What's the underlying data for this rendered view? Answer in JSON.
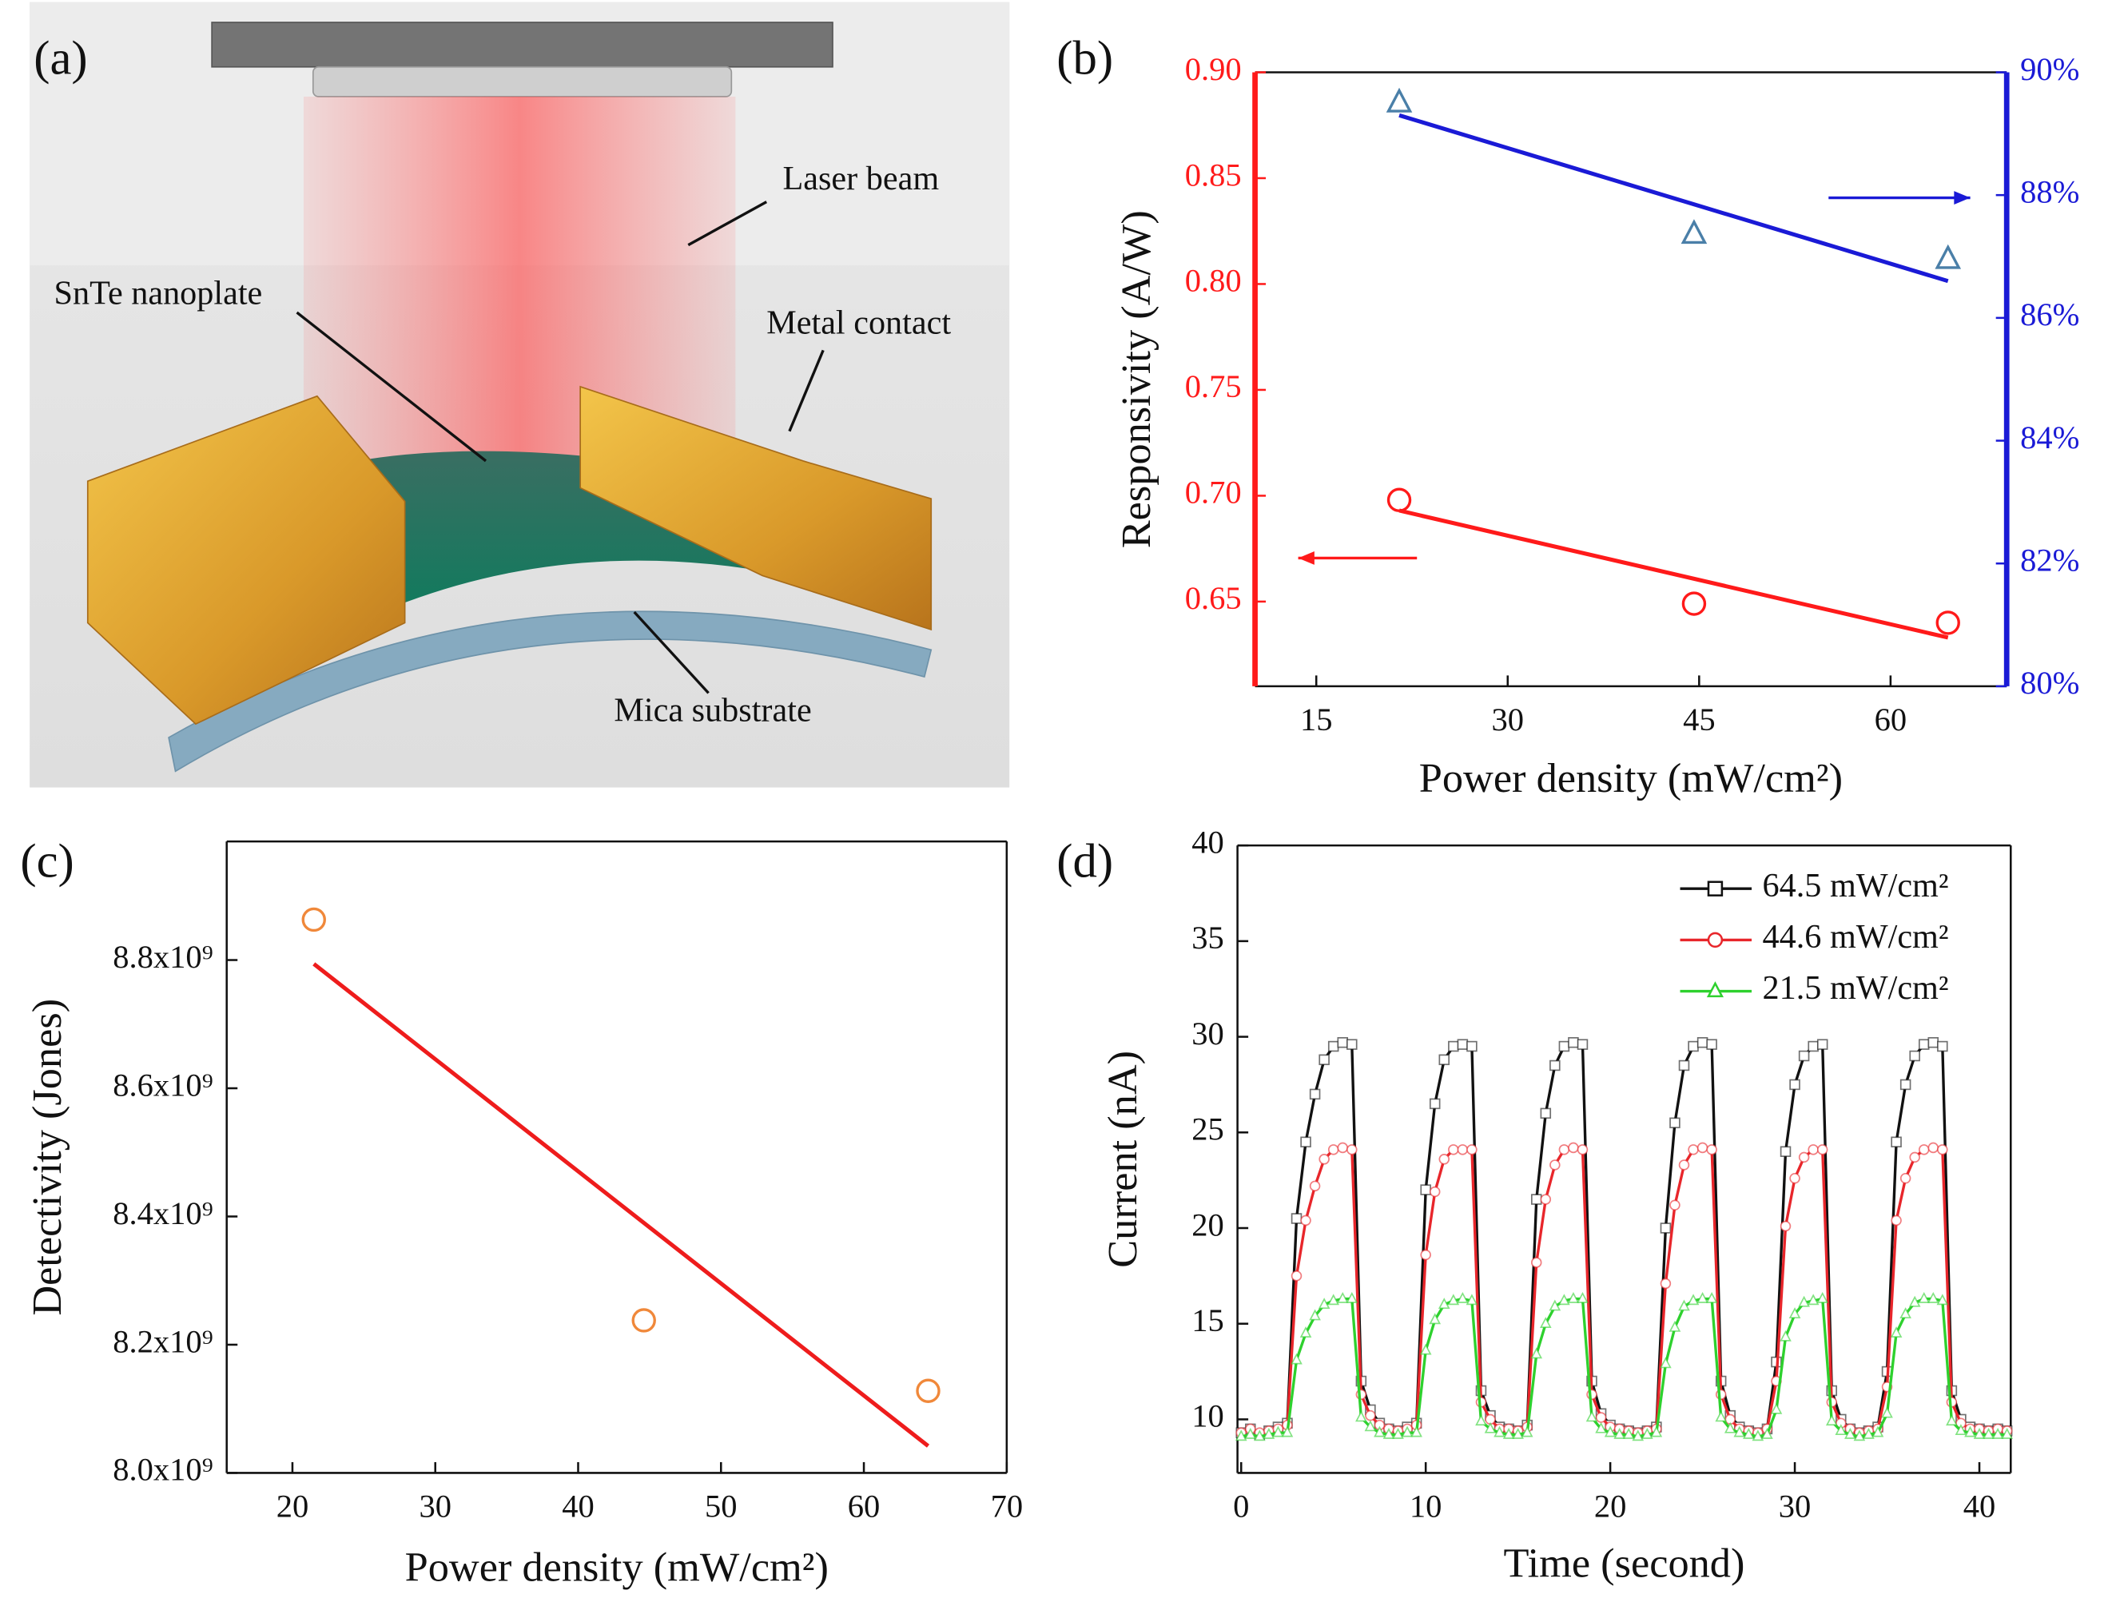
{
  "diagram_a": {
    "panel_label": "(a)",
    "labels": [
      "Laser beam",
      "SnTe nanoplate",
      "Metal contact",
      "Mica substrate"
    ]
  },
  "chart_data": [
    {
      "type": "scatter",
      "panel_label": "(b)",
      "xlabel": "Power density (mW/cm²)",
      "ylabel": "Responsivity (A/W)",
      "xlim": [
        10.2,
        69.1
      ],
      "xticks": [
        15,
        30,
        45,
        60
      ],
      "ylim": [
        0.61,
        0.9
      ],
      "yticks": [
        0.65,
        {
          "value": 0.7,
          "label": "0.70"
        },
        0.75,
        {
          "value": 0.8,
          "label": "0.80"
        },
        0.85,
        {
          "value": 0.9,
          "label": "0.90"
        }
      ],
      "y2lim": [
        80,
        90
      ],
      "y2ticks": [
        {
          "value": 80,
          "label": "80%"
        },
        {
          "value": 82,
          "label": "82%"
        },
        {
          "value": 84,
          "label": "84%"
        },
        {
          "value": 86,
          "label": "86%"
        },
        {
          "value": 88,
          "label": "88%"
        },
        {
          "value": 90,
          "label": "90%"
        }
      ],
      "ycolor": "#ff1a1a",
      "y2color": "#1a1ad6",
      "series": [
        {
          "color": "#ff1a1a",
          "marker": "circle",
          "x": [
            21.5,
            44.6,
            64.5
          ],
          "values": [
            0.698,
            0.649,
            0.64
          ],
          "fit": {
            "x": [
              21.5,
              64.5
            ],
            "values": [
              0.693,
              0.633
            ]
          }
        },
        {
          "color": "#4a7fa8",
          "fit_color": "#1a1ad6",
          "marker": "triangle",
          "axis": "y2",
          "x": [
            21.5,
            44.6,
            64.5
          ],
          "values": [
            89.5,
            87.36,
            86.95
          ],
          "fit": {
            "x": [
              21.5,
              64.5
            ],
            "values": [
              89.3,
              86.6
            ]
          }
        }
      ]
    },
    {
      "type": "scatter",
      "panel_label": "(c)",
      "xlabel": "Power density (mW/cm²)",
      "ylabel": "Detectivity (Jones)",
      "xlim": [
        15.4,
        70
      ],
      "xticks": [
        20,
        30,
        40,
        50,
        60,
        70
      ],
      "ylim": [
        8000000000,
        8985000000
      ],
      "yticks": [
        {
          "value": 8000000000,
          "label": "8.0x10⁹"
        },
        {
          "value": 8200000000,
          "label": "8.2x10⁹"
        },
        {
          "value": 8400000000,
          "label": "8.4x10⁹"
        },
        {
          "value": 8600000000,
          "label": "8.6x10⁹"
        },
        {
          "value": 8800000000,
          "label": "8.8x10⁹"
        }
      ],
      "series": [
        {
          "color": "#f0883a",
          "fit_color": "#ee1c1c",
          "marker": "circle",
          "x": [
            21.5,
            44.6,
            64.5
          ],
          "values": [
            8863000000,
            8238000000,
            8128000000
          ],
          "fit": {
            "x": [
              21.5,
              64.5
            ],
            "values": [
              8794000000,
              8042000000
            ]
          }
        }
      ]
    },
    {
      "type": "line",
      "panel_label": "(d)",
      "xlabel": "Time (second)",
      "ylabel": "Current (nA)",
      "xlim": [
        -0.2,
        41.7
      ],
      "xticks": [
        0,
        10,
        20,
        30,
        40
      ],
      "ylim": [
        7.2,
        40
      ],
      "yticks": [
        10,
        15,
        20,
        25,
        30,
        35,
        40
      ],
      "x": [
        0,
        0.5,
        1,
        1.5,
        2,
        2.5,
        3,
        3.5,
        4,
        4.5,
        5,
        5.5,
        6,
        6.5,
        7,
        7.5,
        8,
        8.5,
        9,
        9.5,
        10,
        10.5,
        11,
        11.5,
        12,
        12.5,
        13,
        13.5,
        14,
        14.5,
        15,
        15.5,
        16,
        16.5,
        17,
        17.5,
        18,
        18.5,
        19,
        19.5,
        20,
        20.5,
        21,
        21.5,
        22,
        22.5,
        23,
        23.5,
        24,
        24.5,
        25,
        25.5,
        26,
        26.5,
        27,
        27.5,
        28,
        28.5,
        29,
        29.5,
        30,
        30.5,
        31,
        31.5,
        32,
        32.5,
        33,
        33.5,
        34,
        34.5,
        35,
        35.5,
        36,
        36.5,
        37,
        37.5,
        38,
        38.5,
        39,
        39.5,
        40,
        40.5,
        41,
        41.5
      ],
      "series": [
        {
          "name": "64.5 mW/cm²",
          "color": "#111111",
          "marker": "square",
          "values": [
            9.3,
            9.5,
            9.2,
            9.4,
            9.6,
            9.8,
            20.5,
            24.5,
            27.0,
            28.8,
            29.5,
            29.7,
            29.6,
            12.0,
            10.5,
            9.8,
            9.5,
            9.4,
            9.6,
            9.8,
            22.0,
            26.5,
            28.8,
            29.5,
            29.6,
            29.5,
            11.5,
            10.2,
            9.6,
            9.5,
            9.4,
            9.7,
            21.5,
            26.0,
            28.5,
            29.5,
            29.7,
            29.6,
            12.0,
            10.3,
            9.7,
            9.5,
            9.4,
            9.3,
            9.4,
            9.6,
            20.0,
            25.5,
            28.5,
            29.5,
            29.7,
            29.6,
            12.0,
            10.2,
            9.6,
            9.4,
            9.3,
            9.5,
            13.0,
            24.0,
            27.5,
            29.0,
            29.5,
            29.6,
            11.5,
            10.0,
            9.5,
            9.3,
            9.4,
            9.6,
            12.5,
            24.5,
            27.5,
            29.0,
            29.6,
            29.7,
            29.5,
            11.5,
            10.0,
            9.6,
            9.5,
            9.4,
            9.5,
            9.4
          ]
        },
        {
          "name": "44.6 mW/cm²",
          "color": "#e8262b",
          "marker": "circle",
          "values": [
            9.3,
            9.5,
            9.3,
            9.4,
            9.5,
            9.7,
            17.5,
            20.4,
            22.2,
            23.6,
            24.1,
            24.2,
            24.1,
            11.3,
            10.2,
            9.7,
            9.5,
            9.4,
            9.5,
            9.7,
            18.6,
            21.9,
            23.6,
            24.1,
            24.1,
            24.1,
            10.9,
            10.0,
            9.5,
            9.5,
            9.4,
            9.6,
            18.2,
            21.5,
            23.3,
            24.1,
            24.2,
            24.1,
            11.3,
            10.1,
            9.6,
            9.5,
            9.4,
            9.3,
            9.4,
            9.5,
            17.1,
            21.2,
            23.3,
            24.1,
            24.2,
            24.1,
            11.3,
            10.0,
            9.5,
            9.4,
            9.3,
            9.5,
            12.0,
            20.1,
            22.6,
            23.7,
            24.1,
            24.1,
            10.9,
            9.8,
            9.5,
            9.3,
            9.4,
            9.5,
            11.7,
            20.4,
            22.6,
            23.7,
            24.1,
            24.2,
            24.1,
            10.9,
            9.8,
            9.5,
            9.5,
            9.4,
            9.5,
            9.4
          ]
        },
        {
          "name": "21.5 mW/cm²",
          "color": "#2ed12e",
          "marker": "triangle",
          "values": [
            9.1,
            9.2,
            9.1,
            9.2,
            9.3,
            9.3,
            13.1,
            14.5,
            15.4,
            16.0,
            16.2,
            16.3,
            16.3,
            10.1,
            9.6,
            9.3,
            9.2,
            9.2,
            9.3,
            9.3,
            13.6,
            15.2,
            16.0,
            16.2,
            16.3,
            16.2,
            9.9,
            9.5,
            9.3,
            9.2,
            9.2,
            9.3,
            13.4,
            15.0,
            15.9,
            16.2,
            16.3,
            16.3,
            10.1,
            9.5,
            9.3,
            9.2,
            9.2,
            9.1,
            9.2,
            9.3,
            12.9,
            14.8,
            15.9,
            16.2,
            16.3,
            16.3,
            10.1,
            9.5,
            9.3,
            9.2,
            9.1,
            9.2,
            10.5,
            14.3,
            15.5,
            16.1,
            16.2,
            16.3,
            9.9,
            9.4,
            9.2,
            9.1,
            9.2,
            9.3,
            10.3,
            14.5,
            15.5,
            16.1,
            16.3,
            16.3,
            16.2,
            9.9,
            9.4,
            9.3,
            9.2,
            9.2,
            9.2,
            9.2
          ]
        }
      ]
    }
  ]
}
